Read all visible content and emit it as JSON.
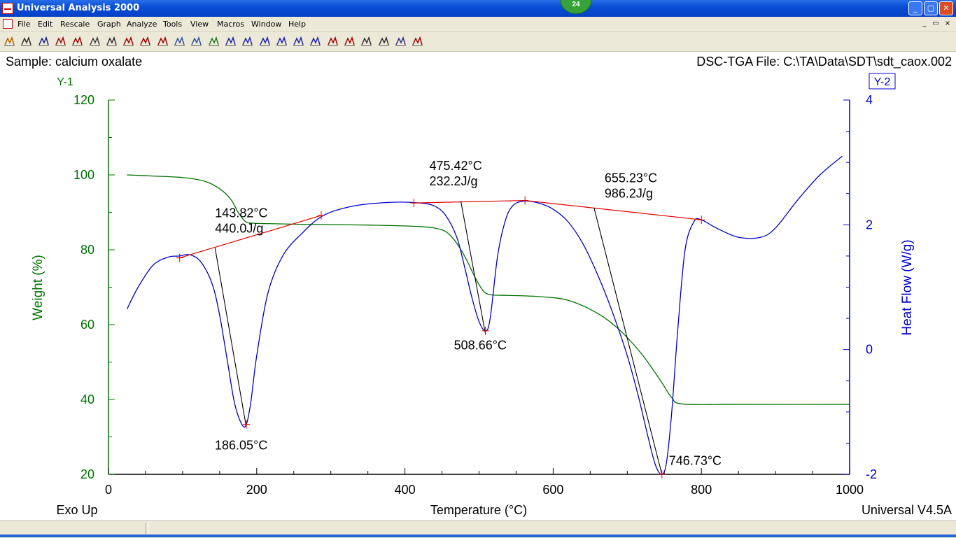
{
  "window": {
    "title": "Universal Analysis 2000",
    "badge": "24",
    "buttons": [
      "_",
      "▢",
      "✕"
    ]
  },
  "menu": [
    "File",
    "Edit",
    "Rescale",
    "Graph",
    "Analyze",
    "Tools",
    "View",
    "Macros",
    "Window",
    "Help"
  ],
  "mdi_buttons": [
    "_",
    "▭",
    "×"
  ],
  "toolbar_icons": [
    "open-icon",
    "print-icon",
    "cursor-icon",
    "rescale-icon",
    "rescale-all-icon",
    "graph-icon",
    "zoom-icon",
    "full-scale-icon",
    "signal-icon",
    "tick-icon",
    "auto-label-icon",
    "overlay-icon",
    "table-icon",
    "peak-integrate-icon",
    "onset-icon",
    "peak-max-icon",
    "step-icon",
    "running-integral-icon",
    "cursor-pick-icon",
    "crosshair-icon",
    "slope-icon",
    "glass-transition-icon",
    "spreadsheet-icon",
    "legend-icon",
    "delete-icon"
  ],
  "chart_data": {
    "type": "line",
    "header_left": "Sample: calcium oxalate",
    "header_right": "DSC-TGA File: C:\\TA\\Data\\SDT\\sdt_caox.002",
    "y1_tag": "Y-1",
    "y2_tag": "Y-2",
    "xlabel": "Temperature (°C)",
    "y1label": "Weight (%)",
    "y2label": "Heat Flow (W/g)",
    "footer_left": "Exo Up",
    "footer_right": "Universal V4.5A",
    "xlim": [
      0,
      1000
    ],
    "y1lim": [
      20,
      120
    ],
    "y2lim": [
      -2,
      4
    ],
    "xticks": [
      0,
      200,
      400,
      600,
      800,
      1000
    ],
    "y1ticks": [
      20,
      40,
      60,
      80,
      100,
      120
    ],
    "y2ticks": [
      -2,
      0,
      2,
      4
    ],
    "colors": {
      "weight": "#007000",
      "heatflow": "#0000cc",
      "baseline": "#e00000",
      "text": "#000000"
    },
    "series": [
      {
        "name": "Weight (%)",
        "axis": "y1",
        "x": [
          25,
          60,
          100,
          130,
          150,
          165,
          175,
          185,
          195,
          210,
          260,
          350,
          420,
          450,
          465,
          480,
          495,
          505,
          515,
          540,
          580,
          620,
          660,
          690,
          720,
          745,
          760,
          775,
          850,
          1000
        ],
        "y": [
          100,
          99.7,
          99.3,
          98.3,
          96.3,
          93.5,
          90,
          87.5,
          87.1,
          87,
          86.8,
          86.6,
          86.2,
          85.3,
          83,
          78.5,
          72.5,
          69.2,
          68,
          67.8,
          67.5,
          66.5,
          63,
          58.5,
          52,
          45,
          40.5,
          38.8,
          38.7,
          38.7
        ]
      },
      {
        "name": "Heat Flow (W/g)",
        "axis": "y2",
        "x": [
          25,
          40,
          60,
          80,
          95,
          110,
          125,
          140,
          150,
          160,
          170,
          180,
          186,
          192,
          200,
          215,
          235,
          260,
          290,
          330,
          380,
          420,
          440,
          455,
          470,
          480,
          490,
          500,
          508.66,
          515,
          525,
          535,
          545,
          560,
          580,
          600,
          620,
          640,
          660,
          680,
          700,
          715,
          728,
          738,
          746.73,
          753,
          760,
          768,
          778,
          790,
          800,
          820,
          850,
          880,
          900,
          930,
          960,
          990
        ],
        "y": [
          0.65,
          1.0,
          1.35,
          1.48,
          1.5,
          1.52,
          1.4,
          1.05,
          0.55,
          -0.15,
          -0.85,
          -1.2,
          -1.2,
          -0.85,
          -0.1,
          0.9,
          1.5,
          1.85,
          2.15,
          2.3,
          2.36,
          2.35,
          2.3,
          2.15,
          1.8,
          1.35,
          0.85,
          0.45,
          0.3,
          0.5,
          1.5,
          2.05,
          2.3,
          2.38,
          2.35,
          2.25,
          2.05,
          1.7,
          1.2,
          0.6,
          -0.1,
          -0.75,
          -1.4,
          -1.85,
          -2.0,
          -1.8,
          -1.0,
          0.3,
          1.6,
          2.05,
          2.08,
          1.95,
          1.8,
          1.8,
          1.95,
          2.4,
          2.8,
          3.1
        ]
      }
    ],
    "baselines": [
      {
        "x": [
          96,
          287
        ],
        "y": [
          1.47,
          2.15
        ]
      },
      {
        "x": [
          412,
          562
        ],
        "y": [
          2.35,
          2.39
        ]
      },
      {
        "x": [
          562,
          800
        ],
        "y": [
          2.39,
          2.08
        ]
      }
    ],
    "tangents": [
      {
        "x": [
          143.8,
          186.05
        ],
        "y": [
          1.63,
          -1.25
        ]
      },
      {
        "x": [
          475.4,
          508.66
        ],
        "y": [
          2.38,
          0.25
        ]
      },
      {
        "x": [
          655.2,
          746.73
        ],
        "y": [
          2.27,
          -2.0
        ]
      }
    ],
    "markers": [
      {
        "x": 96,
        "y": 1.47
      },
      {
        "x": 287,
        "y": 2.15
      },
      {
        "x": 186.05,
        "y": -1.2
      },
      {
        "x": 412,
        "y": 2.35
      },
      {
        "x": 562,
        "y": 2.39
      },
      {
        "x": 508.66,
        "y": 0.3
      },
      {
        "x": 800,
        "y": 2.08
      },
      {
        "x": 746.73,
        "y": -2.0
      }
    ],
    "annotations": [
      {
        "label": "143.82°C",
        "sub": "440.0J/g",
        "x": 143.82,
        "y": 2.12,
        "dx": 0
      },
      {
        "label": "475.42°C",
        "sub": "232.2J/g",
        "x": 475.42,
        "y": 2.88,
        "dx": -45
      },
      {
        "label": "655.23°C",
        "sub": "986.2J/g",
        "x": 655.23,
        "y": 2.68,
        "dx": 15
      },
      {
        "label": "186.05°C",
        "sub": "",
        "x": 186.05,
        "y": -1.6,
        "dx": -45
      },
      {
        "label": "508.66°C",
        "sub": "",
        "x": 508.66,
        "y": 0.0,
        "dx": -45
      },
      {
        "label": "746.73°C",
        "sub": "",
        "x": 746.73,
        "y": -1.85,
        "dx": 10
      }
    ]
  }
}
